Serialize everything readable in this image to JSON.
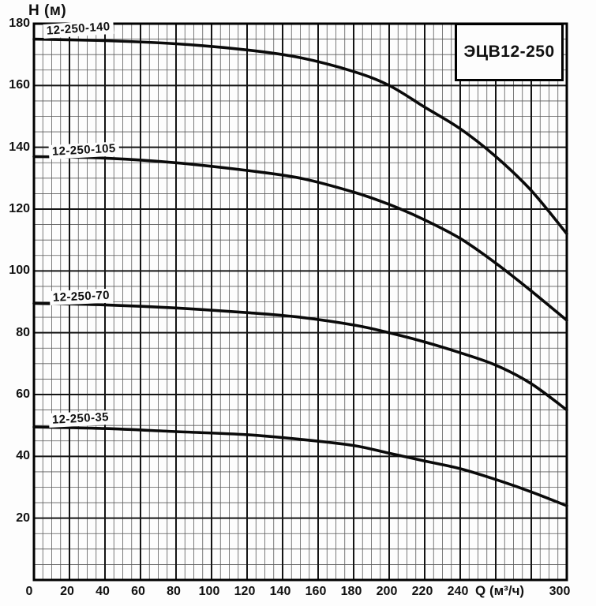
{
  "chart_data": {
    "type": "line",
    "title": "ЭЦВ12-250",
    "ylabel": "H (м)",
    "xlabel": "Q (м³/ч)",
    "xlim": [
      0,
      300
    ],
    "ylim": [
      0,
      180
    ],
    "x_major_step": 20,
    "x_minor_step": 5,
    "y_major_step": 20,
    "y_minor_step": 5,
    "grid": true,
    "legend_position": "on-curve-labels",
    "x_tick_labels": [
      0,
      20,
      40,
      60,
      80,
      100,
      120,
      140,
      160,
      180,
      200,
      220,
      240,
      300
    ],
    "y_tick_labels": [
      180,
      160,
      140,
      120,
      100,
      80,
      60,
      40,
      20
    ],
    "curve_color": "#0a0a0a",
    "grid_minor_color": "#5a5a5a",
    "grid_major_color": "#141414",
    "border_color": "#000000",
    "series": [
      {
        "name": "12-250-140",
        "points": [
          [
            0,
            175
          ],
          [
            40,
            174.5
          ],
          [
            80,
            173.5
          ],
          [
            120,
            171.5
          ],
          [
            150,
            169
          ],
          [
            180,
            164.5
          ],
          [
            200,
            160
          ],
          [
            220,
            153
          ],
          [
            240,
            146
          ],
          [
            260,
            137
          ],
          [
            280,
            126
          ],
          [
            300,
            112
          ]
        ]
      },
      {
        "name": "12-250-105",
        "points": [
          [
            0,
            137
          ],
          [
            40,
            136.5
          ],
          [
            80,
            135
          ],
          [
            120,
            132.5
          ],
          [
            150,
            130
          ],
          [
            180,
            125.5
          ],
          [
            200,
            121.5
          ],
          [
            220,
            116.5
          ],
          [
            240,
            110.5
          ],
          [
            260,
            102.5
          ],
          [
            280,
            93.5
          ],
          [
            300,
            84
          ]
        ]
      },
      {
        "name": "12-250-70",
        "points": [
          [
            0,
            89.5
          ],
          [
            40,
            89
          ],
          [
            80,
            88
          ],
          [
            120,
            86.5
          ],
          [
            150,
            85
          ],
          [
            180,
            82.5
          ],
          [
            200,
            80
          ],
          [
            220,
            77
          ],
          [
            240,
            73.5
          ],
          [
            260,
            69.5
          ],
          [
            280,
            63.5
          ],
          [
            300,
            55
          ]
        ]
      },
      {
        "name": "12-250-35",
        "points": [
          [
            0,
            49.5
          ],
          [
            40,
            49
          ],
          [
            80,
            48
          ],
          [
            120,
            47
          ],
          [
            150,
            45.5
          ],
          [
            180,
            43.5
          ],
          [
            200,
            41
          ],
          [
            220,
            38.5
          ],
          [
            240,
            36
          ],
          [
            260,
            32.5
          ],
          [
            280,
            28.5
          ],
          [
            300,
            24
          ]
        ]
      }
    ]
  }
}
